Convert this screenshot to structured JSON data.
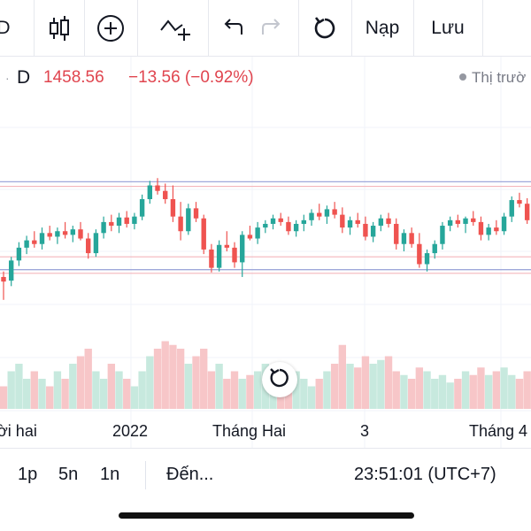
{
  "toolbar": {
    "partial_label": "D",
    "candle_icon": "candlestick-icon",
    "add_icon": "plus-circle-icon",
    "indicator_icon": "add-indicator-icon",
    "undo_icon": "undo-icon",
    "redo_icon": "redo-icon",
    "reload_icon": "reload-icon",
    "load_label": "Nạp",
    "save_label": "Lưu"
  },
  "symbol": {
    "dot": "·",
    "interval": "D",
    "price": "1458.56",
    "change": "−13.56 (−0.92%)",
    "market_status": "Thị trườ"
  },
  "colors": {
    "up": "#26a69a",
    "down": "#ef5350",
    "up_volume": "#c7e9de",
    "down_volume": "#f7c6c8",
    "line_blue": "#9fa8da",
    "line_red": "#f4b6bc"
  },
  "chart_data": {
    "type": "candlestick",
    "x_tick_labels": [
      "ời hai",
      "2022",
      "Tháng Hai",
      "3",
      "Tháng 4"
    ],
    "horizontal_lines": [
      "upper-resistance",
      "mid-support",
      "lower-support"
    ],
    "candles": [
      [
        1430,
        1436,
        1405,
        1425
      ],
      [
        1426,
        1452,
        1420,
        1448
      ],
      [
        1448,
        1468,
        1442,
        1462
      ],
      [
        1462,
        1475,
        1455,
        1470
      ],
      [
        1470,
        1480,
        1462,
        1466
      ],
      [
        1466,
        1484,
        1460,
        1478
      ],
      [
        1478,
        1486,
        1470,
        1474
      ],
      [
        1474,
        1484,
        1466,
        1480
      ],
      [
        1480,
        1490,
        1472,
        1476
      ],
      [
        1476,
        1486,
        1468,
        1482
      ],
      [
        1482,
        1490,
        1470,
        1472
      ],
      [
        1472,
        1478,
        1450,
        1456
      ],
      [
        1456,
        1482,
        1452,
        1478
      ],
      [
        1478,
        1496,
        1472,
        1490
      ],
      [
        1490,
        1498,
        1480,
        1486
      ],
      [
        1486,
        1500,
        1478,
        1495
      ],
      [
        1495,
        1502,
        1484,
        1488
      ],
      [
        1488,
        1500,
        1482,
        1496
      ],
      [
        1496,
        1520,
        1492,
        1515
      ],
      [
        1515,
        1535,
        1510,
        1530
      ],
      [
        1530,
        1538,
        1520,
        1524
      ],
      [
        1524,
        1532,
        1510,
        1515
      ],
      [
        1515,
        1530,
        1490,
        1496
      ],
      [
        1496,
        1512,
        1470,
        1480
      ],
      [
        1480,
        1510,
        1476,
        1505
      ],
      [
        1505,
        1512,
        1490,
        1494
      ],
      [
        1494,
        1498,
        1455,
        1460
      ],
      [
        1460,
        1466,
        1435,
        1440
      ],
      [
        1440,
        1470,
        1436,
        1465
      ],
      [
        1465,
        1480,
        1458,
        1462
      ],
      [
        1462,
        1468,
        1440,
        1446
      ],
      [
        1446,
        1480,
        1430,
        1476
      ],
      [
        1476,
        1486,
        1470,
        1472
      ],
      [
        1472,
        1490,
        1466,
        1484
      ],
      [
        1484,
        1492,
        1478,
        1488
      ],
      [
        1488,
        1498,
        1482,
        1494
      ],
      [
        1494,
        1500,
        1486,
        1490
      ],
      [
        1490,
        1496,
        1476,
        1480
      ],
      [
        1480,
        1492,
        1474,
        1488
      ],
      [
        1488,
        1498,
        1480,
        1492
      ],
      [
        1492,
        1504,
        1486,
        1500
      ],
      [
        1500,
        1510,
        1492,
        1496
      ],
      [
        1496,
        1508,
        1488,
        1504
      ],
      [
        1504,
        1512,
        1494,
        1498
      ],
      [
        1498,
        1506,
        1478,
        1484
      ],
      [
        1484,
        1496,
        1476,
        1492
      ],
      [
        1492,
        1500,
        1484,
        1488
      ],
      [
        1488,
        1496,
        1470,
        1474
      ],
      [
        1474,
        1490,
        1468,
        1486
      ],
      [
        1486,
        1498,
        1480,
        1494
      ],
      [
        1494,
        1500,
        1484,
        1488
      ],
      [
        1488,
        1494,
        1460,
        1466
      ],
      [
        1466,
        1482,
        1458,
        1478
      ],
      [
        1478,
        1484,
        1462,
        1466
      ],
      [
        1466,
        1478,
        1440,
        1444
      ],
      [
        1444,
        1460,
        1436,
        1456
      ],
      [
        1456,
        1470,
        1450,
        1466
      ],
      [
        1466,
        1490,
        1460,
        1486
      ],
      [
        1486,
        1496,
        1480,
        1492
      ],
      [
        1492,
        1498,
        1484,
        1488
      ],
      [
        1488,
        1496,
        1478,
        1494
      ],
      [
        1494,
        1502,
        1486,
        1490
      ],
      [
        1490,
        1496,
        1470,
        1476
      ],
      [
        1476,
        1488,
        1470,
        1484
      ],
      [
        1484,
        1492,
        1476,
        1480
      ],
      [
        1480,
        1500,
        1476,
        1496
      ],
      [
        1496,
        1518,
        1490,
        1514
      ],
      [
        1514,
        1522,
        1506,
        1510
      ],
      [
        1510,
        1516,
        1488,
        1492
      ]
    ],
    "volumes": [
      0.3,
      0.5,
      0.6,
      0.4,
      0.5,
      0.4,
      0.3,
      0.5,
      0.4,
      0.6,
      0.7,
      0.8,
      0.5,
      0.4,
      0.6,
      0.5,
      0.4,
      0.3,
      0.5,
      0.7,
      0.8,
      0.9,
      0.85,
      0.8,
      0.6,
      0.7,
      0.8,
      0.5,
      0.6,
      0.4,
      0.5,
      0.4,
      0.45,
      0.5,
      0.6,
      0.4,
      0.35,
      0.45,
      0.5,
      0.4,
      0.3,
      0.4,
      0.5,
      0.6,
      0.85,
      0.6,
      0.55,
      0.7,
      0.6,
      0.65,
      0.7,
      0.5,
      0.45,
      0.4,
      0.55,
      0.5,
      0.4,
      0.45,
      0.35,
      0.4,
      0.5,
      0.45,
      0.55,
      0.45,
      0.5,
      0.55,
      0.45,
      0.4,
      0.5
    ]
  },
  "reset_icon": "reset-chart-icon",
  "bottom": {
    "intervals": [
      "1p",
      "5n",
      "1n"
    ],
    "goto": "Đến...",
    "clock": "23:51:01 (UTC+7)"
  }
}
